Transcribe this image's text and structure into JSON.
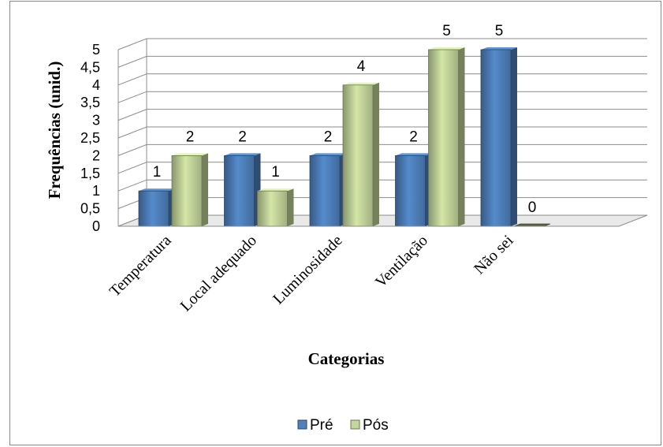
{
  "chart_data": {
    "type": "bar",
    "xlabel": "Categorias",
    "ylabel": "Frequências (unid.)",
    "categories": [
      "Temperatura",
      "Local adequado",
      "Luminosidade",
      "Ventilação",
      "Não sei"
    ],
    "series": [
      {
        "name": "Pré",
        "values": [
          1,
          2,
          2,
          2,
          5
        ],
        "color": "#4F81BD"
      },
      {
        "name": "Pós",
        "values": [
          2,
          1,
          4,
          5,
          0
        ],
        "color": "#C3D69B"
      }
    ],
    "ylim": [
      0,
      5
    ],
    "yticks": [
      "0",
      "0,5",
      "1",
      "1,5",
      "2",
      "2,5",
      "3",
      "3,5",
      "4",
      "4,5",
      "5"
    ],
    "grid": true,
    "style": "3d-clustered-columns",
    "legend": "bottom"
  }
}
